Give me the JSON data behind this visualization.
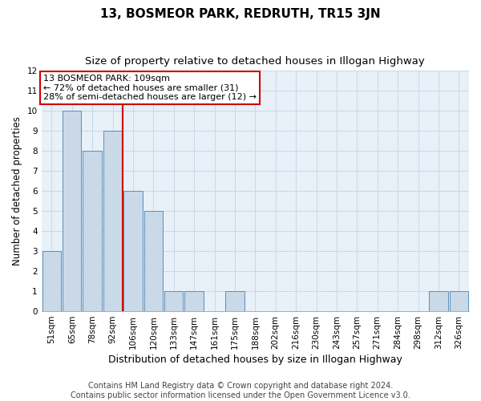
{
  "title": "13, BOSMEOR PARK, REDRUTH, TR15 3JN",
  "subtitle": "Size of property relative to detached houses in Illogan Highway",
  "xlabel": "Distribution of detached houses by size in Illogan Highway",
  "ylabel": "Number of detached properties",
  "categories": [
    "51sqm",
    "65sqm",
    "78sqm",
    "92sqm",
    "106sqm",
    "120sqm",
    "133sqm",
    "147sqm",
    "161sqm",
    "175sqm",
    "188sqm",
    "202sqm",
    "216sqm",
    "230sqm",
    "243sqm",
    "257sqm",
    "271sqm",
    "284sqm",
    "298sqm",
    "312sqm",
    "326sqm"
  ],
  "values": [
    3,
    10,
    8,
    9,
    6,
    5,
    1,
    1,
    0,
    1,
    0,
    0,
    0,
    0,
    0,
    0,
    0,
    0,
    0,
    1,
    1
  ],
  "bar_color": "#c9d9e8",
  "bar_edgecolor": "#5b8db8",
  "vline_index": 4,
  "vline_color": "#cc0000",
  "ylim": [
    0,
    12
  ],
  "yticks": [
    0,
    1,
    2,
    3,
    4,
    5,
    6,
    7,
    8,
    9,
    10,
    11,
    12
  ],
  "annotation_line1": "13 BOSMEOR PARK: 109sqm",
  "annotation_line2": "← 72% of detached houses are smaller (31)",
  "annotation_line3": "28% of semi-detached houses are larger (12) →",
  "annotation_box_color": "#cc0000",
  "grid_color": "#c8d8e8",
  "bg_color": "#e8f0f8",
  "footer_line1": "Contains HM Land Registry data © Crown copyright and database right 2024.",
  "footer_line2": "Contains public sector information licensed under the Open Government Licence v3.0.",
  "title_fontsize": 11,
  "subtitle_fontsize": 9.5,
  "xlabel_fontsize": 9,
  "ylabel_fontsize": 8.5,
  "tick_fontsize": 7.5,
  "annotation_fontsize": 8,
  "footer_fontsize": 7
}
